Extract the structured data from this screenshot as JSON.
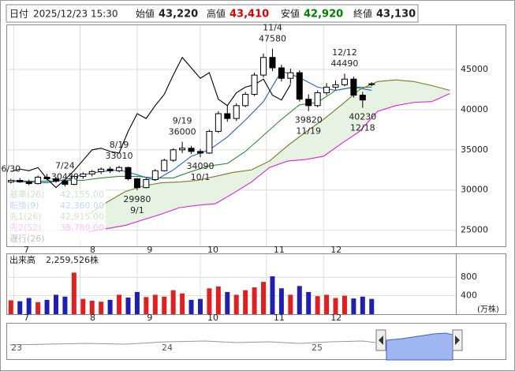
{
  "header": {
    "date_label": "日付",
    "date": "2025/12/23 15:30",
    "open_label": "始値",
    "open": "43,220",
    "high_label": "高値",
    "high": "43,410",
    "low_label": "安値",
    "low": "42,920",
    "close_label": "終値",
    "close": "43,130"
  },
  "chart_data": [
    {
      "type": "candlestick",
      "xlim": [
        -1,
        148
      ],
      "ylim": [
        23000,
        50500
      ],
      "yticks": [
        25000,
        30000,
        35000,
        40000,
        45000
      ],
      "xticks": [
        {
          "value": 1,
          "label": "7"
        },
        {
          "value": 23,
          "label": "8"
        },
        {
          "value": 42,
          "label": "9"
        },
        {
          "value": 63,
          "label": "10"
        },
        {
          "value": 85,
          "label": "11"
        },
        {
          "value": 104,
          "label": "12"
        }
      ],
      "grid": true,
      "up_color": "#ffffff",
      "down_color": "#000000",
      "x": [
        0,
        3,
        6,
        9,
        12,
        15,
        18,
        21,
        24,
        27,
        30,
        33,
        36,
        39,
        42,
        45,
        48,
        51,
        54,
        57,
        60,
        63,
        66,
        69,
        72,
        75,
        78,
        81,
        84,
        87,
        90,
        93,
        96,
        99,
        102,
        105,
        108,
        111,
        114,
        117,
        120
      ],
      "open": [
        31000,
        31200,
        31000,
        30800,
        31600,
        31400,
        31100,
        30700,
        31700,
        32000,
        32300,
        32600,
        32400,
        32800,
        31400,
        30300,
        31300,
        32400,
        33700,
        35000,
        35200,
        34800,
        34600,
        37300,
        39500,
        38900,
        40500,
        41900,
        44300,
        46500,
        45200,
        43900,
        44600,
        41300,
        40500,
        42100,
        42800,
        43100,
        43800,
        41800,
        43220
      ],
      "high": [
        31400,
        31500,
        31300,
        31800,
        32000,
        31600,
        31300,
        31800,
        32200,
        32500,
        32800,
        32900,
        33010,
        32900,
        31500,
        31500,
        32600,
        33900,
        35200,
        36000,
        35500,
        35100,
        37500,
        39800,
        40600,
        40800,
        42200,
        44600,
        47000,
        47580,
        45600,
        45100,
        44900,
        41900,
        42400,
        43300,
        43600,
        44490,
        44100,
        42200,
        43410
      ],
      "low": [
        30800,
        30900,
        30600,
        30700,
        31200,
        30900,
        30430,
        30600,
        31400,
        31700,
        32000,
        32100,
        32200,
        31200,
        29980,
        30200,
        31200,
        32300,
        33500,
        34600,
        34500,
        34090,
        34500,
        37100,
        38500,
        38600,
        40300,
        41700,
        44000,
        44800,
        43500,
        43200,
        41000,
        39820,
        40300,
        41800,
        42500,
        42900,
        41500,
        40230,
        42920
      ],
      "close": [
        31200,
        31000,
        30800,
        31600,
        31400,
        31100,
        30700,
        31700,
        32000,
        32300,
        32600,
        32400,
        32800,
        31400,
        30300,
        31300,
        32400,
        33700,
        35000,
        35200,
        34800,
        34600,
        37300,
        39500,
        38900,
        40500,
        41900,
        44300,
        46500,
        45200,
        43900,
        44600,
        41300,
        40500,
        42100,
        42800,
        43100,
        43800,
        41800,
        41200,
        43130
      ],
      "cloud_color": "#e6f3e2",
      "lines": [
        {
          "name": "基準(26)",
          "legend_value": "42,155.00",
          "color": "#2e8b2e",
          "x": [
            0,
            6,
            12,
            18,
            24,
            30,
            36,
            42,
            48,
            54,
            60,
            66,
            72,
            78,
            84,
            90,
            96,
            102,
            108,
            114,
            120
          ],
          "values": [
            31200,
            31100,
            31100,
            31200,
            31200,
            31500,
            31700,
            31700,
            31500,
            31500,
            32300,
            33000,
            33300,
            34800,
            36800,
            38800,
            40600,
            40900,
            42400,
            42800,
            42800
          ]
        },
        {
          "name": "転換(9)",
          "legend_value": "42,360.00",
          "color": "#2060e0",
          "x": [
            0,
            6,
            12,
            18,
            24,
            30,
            36,
            42,
            48,
            54,
            60,
            66,
            72,
            78,
            84,
            90,
            96,
            102,
            108,
            114,
            120
          ],
          "values": [
            31100,
            31000,
            30900,
            31300,
            31900,
            32300,
            32500,
            31900,
            31200,
            32500,
            34200,
            35000,
            36600,
            38700,
            41000,
            44800,
            44000,
            42800,
            42400,
            42800,
            42400
          ]
        },
        {
          "name": "先1(26)",
          "legend_value": "42,915.00",
          "color": "#7a7a20",
          "x": [
            26,
            32,
            38,
            44,
            50,
            56,
            62,
            68,
            74,
            80,
            86,
            92,
            98,
            104,
            110,
            116,
            122,
            128,
            134,
            140,
            146
          ],
          "values": [
            27000,
            28500,
            29800,
            30500,
            30900,
            31000,
            31200,
            31700,
            32200,
            32500,
            33600,
            35500,
            37200,
            38800,
            40600,
            42500,
            43500,
            43700,
            43500,
            43000,
            42400
          ]
        },
        {
          "name": "先2(52)",
          "legend_value": "38,780.00",
          "color": "#e020e0",
          "x": [
            26,
            32,
            38,
            44,
            50,
            56,
            62,
            68,
            74,
            80,
            86,
            92,
            98,
            104,
            110,
            116,
            122,
            128,
            134,
            140,
            146
          ],
          "values": [
            24800,
            25200,
            25600,
            26300,
            27000,
            27800,
            28100,
            28300,
            29600,
            31000,
            32800,
            33600,
            33800,
            34200,
            35800,
            37300,
            39800,
            40500,
            40900,
            41000,
            42000
          ]
        },
        {
          "name": "遅行(26)",
          "color": "#000000",
          "x": [
            0,
            3,
            6,
            9,
            12,
            15,
            18,
            21,
            24,
            27,
            30,
            33,
            36,
            39,
            42,
            45,
            48,
            51,
            54,
            57,
            60,
            63,
            66,
            69,
            72,
            75,
            78,
            81,
            84,
            87,
            90,
            93
          ],
          "values": [
            32300,
            32600,
            32400,
            32800,
            31400,
            30300,
            31300,
            32400,
            33700,
            35000,
            35200,
            34800,
            34600,
            37300,
            39500,
            38900,
            40500,
            41900,
            44300,
            46500,
            45200,
            43900,
            44600,
            41300,
            40500,
            42100,
            42800,
            43100,
            43800,
            41800,
            41200,
            43130
          ]
        }
      ],
      "annotations": [
        {
          "x": 0,
          "date": "6/30",
          "side": "above"
        },
        {
          "x": 18,
          "date": "7/24",
          "price": 30430,
          "side": "above"
        },
        {
          "x": 36,
          "date": "8/19",
          "price": 33010,
          "side": "above"
        },
        {
          "x": 42,
          "date": "9/1",
          "price": 29980,
          "side": "below"
        },
        {
          "x": 57,
          "date": "9/19",
          "price": 36000,
          "side": "above"
        },
        {
          "x": 63,
          "date": "10/1",
          "price": 34090,
          "side": "below"
        },
        {
          "x": 87,
          "date": "11/4",
          "price": 47580,
          "side": "above"
        },
        {
          "x": 99,
          "date": "11/19",
          "price": 39820,
          "side": "below"
        },
        {
          "x": 111,
          "date": "12/12",
          "price": 44490,
          "side": "above"
        },
        {
          "x": 117,
          "date": "12/18",
          "price": 40230,
          "side": "below"
        }
      ]
    },
    {
      "type": "bar",
      "title": "出来高",
      "total": "2,259,526株",
      "unit": "(万株)",
      "xlim": [
        -1,
        148
      ],
      "ylim": [
        0,
        1300
      ],
      "yticks": [
        400,
        800
      ],
      "xticks": [
        {
          "value": 1,
          "label": "7"
        },
        {
          "value": 23,
          "label": "8"
        },
        {
          "value": 42,
          "label": "9"
        },
        {
          "value": 63,
          "label": "10"
        },
        {
          "value": 85,
          "label": "11"
        },
        {
          "value": 104,
          "label": "12"
        }
      ],
      "up_color": "#e02020",
      "down_color": "#2020b0",
      "x": [
        0,
        3,
        6,
        9,
        12,
        15,
        18,
        21,
        24,
        27,
        30,
        33,
        36,
        39,
        42,
        45,
        48,
        51,
        54,
        57,
        60,
        63,
        66,
        69,
        72,
        75,
        78,
        81,
        84,
        87,
        90,
        93,
        96,
        99,
        102,
        105,
        108,
        111,
        114,
        117,
        120
      ],
      "values": [
        300,
        280,
        350,
        260,
        310,
        420,
        380,
        900,
        330,
        290,
        270,
        310,
        420,
        360,
        480,
        370,
        420,
        380,
        520,
        450,
        310,
        330,
        560,
        600,
        480,
        420,
        520,
        580,
        700,
        820,
        560,
        420,
        610,
        480,
        390,
        420,
        350,
        400,
        340,
        380,
        330
      ]
    }
  ],
  "navigator": {
    "labels": [
      "23",
      "24",
      "25"
    ]
  }
}
